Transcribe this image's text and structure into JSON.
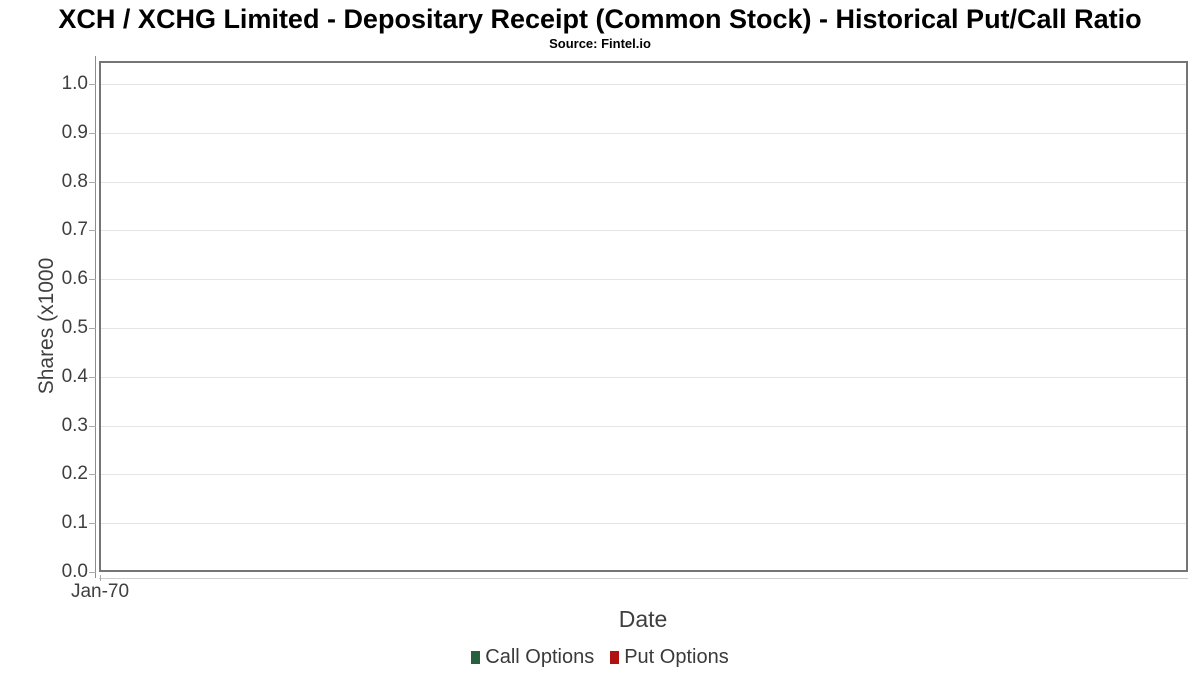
{
  "chart_data": {
    "type": "line",
    "title": "XCH / XCHG Limited - Depositary Receipt (Common Stock) - Historical Put/Call Ratio",
    "subtitle": "Source: Fintel.io",
    "xlabel": "Date",
    "ylabel": "Shares (x1000",
    "ylim": [
      0.0,
      1.0
    ],
    "yticks": [
      "0.0",
      "0.1",
      "0.2",
      "0.3",
      "0.4",
      "0.5",
      "0.6",
      "0.7",
      "0.8",
      "0.9",
      "1.0"
    ],
    "xticks": [
      "Jan-70"
    ],
    "grid": "horizontal-only",
    "legend_position": "bottom-center",
    "series": [
      {
        "name": "Call Options",
        "color": "#28603d",
        "values": []
      },
      {
        "name": "Put Options",
        "color": "#b01212",
        "values": []
      }
    ]
  },
  "colors": {
    "plot_border": "#757575",
    "gridline": "#e4e4e4",
    "axis_line": "#8c8c8c",
    "tick_mark": "#a9a9a9",
    "tick_label": "#3f3f3f",
    "axis_title": "#3f3f3f",
    "title_text": "#000000",
    "legend_text": "#3a3a3a",
    "background": "#ffffff"
  }
}
